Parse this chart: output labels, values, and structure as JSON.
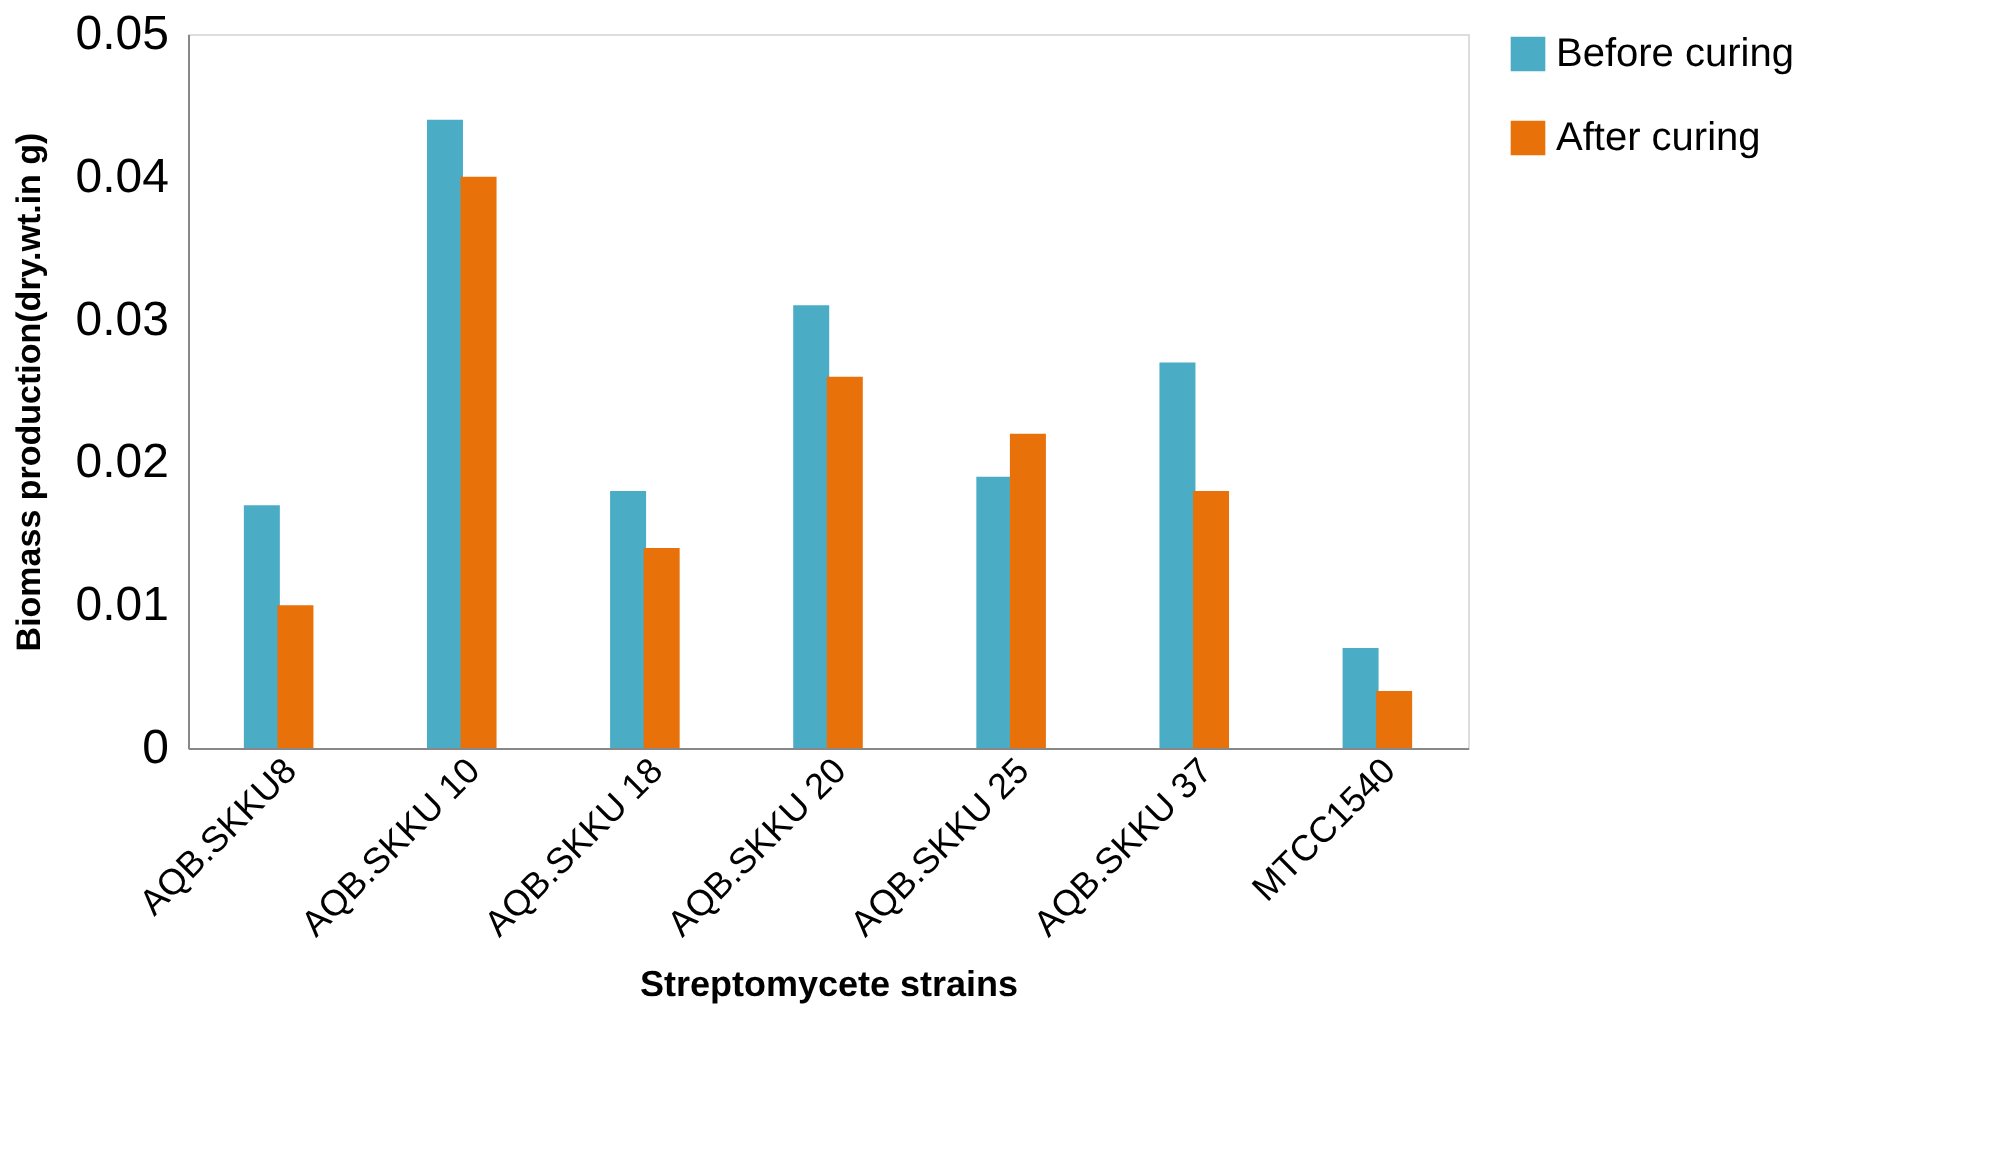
{
  "chart_data": {
    "type": "bar",
    "xlabel": "Streptomycete strains",
    "ylabel": "Biomass production(dry.wt.in g)",
    "categories": [
      "AQB.SKKU8",
      "AQB.SKKU 10",
      "AQB.SKKU 18",
      "AQB.SKKU 20",
      "AQB.SKKU 25",
      "AQB.SKKU 37",
      "MTCC1540"
    ],
    "series": [
      {
        "name": "Before curing",
        "color": "#4bacc6",
        "values": [
          0.017,
          0.044,
          0.018,
          0.031,
          0.019,
          0.027,
          0.007
        ]
      },
      {
        "name": "After curing",
        "color": "#e8710a",
        "values": [
          0.01,
          0.04,
          0.014,
          0.026,
          0.022,
          0.018,
          0.004
        ]
      }
    ],
    "ylim": [
      0,
      0.05
    ],
    "yticks": [
      0,
      0.01,
      0.02,
      0.03,
      0.04,
      0.05
    ],
    "grid": false,
    "legend": "right"
  }
}
